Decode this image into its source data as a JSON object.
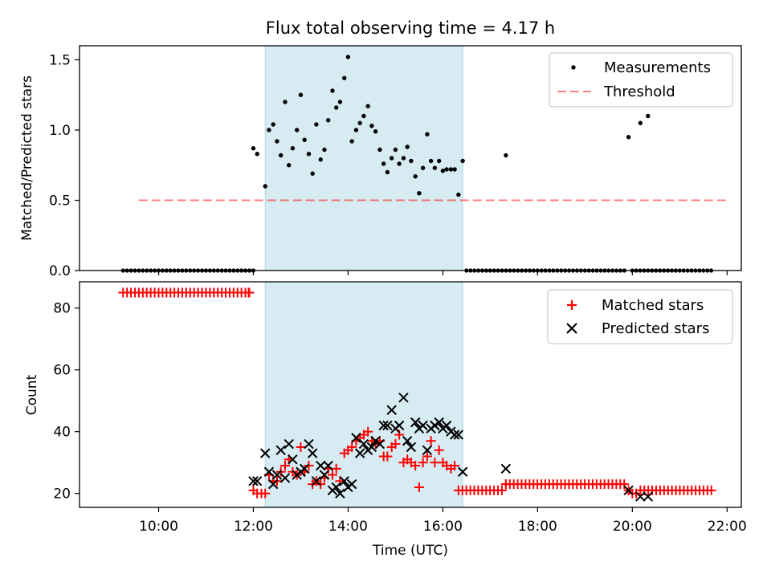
{
  "chart_data": {
    "type": "scatter",
    "title": "Flux total observing time = 4.17 h",
    "xlabel": "Time (UTC)",
    "x_unit": "hours UTC",
    "xlim": [
      8.33,
      22.3
    ],
    "x_ticks": [
      {
        "value": 10,
        "label": "10:00"
      },
      {
        "value": 12,
        "label": "12:00"
      },
      {
        "value": 14,
        "label": "14:00"
      },
      {
        "value": 16,
        "label": "16:00"
      },
      {
        "value": 18,
        "label": "18:00"
      },
      {
        "value": 20,
        "label": "20:00"
      },
      {
        "value": 22,
        "label": "22:00"
      }
    ],
    "shaded_interval": [
      12.25,
      16.42
    ],
    "panels": [
      {
        "ylabel": "Matched/Predicted stars",
        "ylim": [
          0,
          1.6
        ],
        "y_ticks": [
          {
            "value": 0.0,
            "label": "0.0"
          },
          {
            "value": 0.5,
            "label": "0.5"
          },
          {
            "value": 1.0,
            "label": "1.0"
          },
          {
            "value": 1.5,
            "label": "1.5"
          }
        ],
        "legend": [
          "Measurements",
          "Threshold"
        ],
        "threshold": {
          "value": 0.5,
          "x_range": [
            9.58,
            22.05
          ]
        },
        "zero_runs": [
          {
            "start": 9.25,
            "end": 12.0,
            "step": 0.0833
          },
          {
            "start": 16.5,
            "end": 19.9,
            "step": 0.0833
          },
          {
            "start": 20.0,
            "end": 21.7,
            "step": 0.0833
          }
        ],
        "measurements": [
          [
            12.0,
            0.87
          ],
          [
            12.08,
            0.83
          ],
          [
            12.25,
            0.6
          ],
          [
            12.33,
            1.0
          ],
          [
            12.42,
            1.04
          ],
          [
            12.5,
            0.92
          ],
          [
            12.58,
            0.82
          ],
          [
            12.67,
            1.2
          ],
          [
            12.75,
            0.75
          ],
          [
            12.83,
            0.87
          ],
          [
            12.92,
            1.0
          ],
          [
            13.0,
            1.25
          ],
          [
            13.08,
            0.93
          ],
          [
            13.17,
            0.83
          ],
          [
            13.25,
            0.69
          ],
          [
            13.33,
            1.04
          ],
          [
            13.42,
            0.79
          ],
          [
            13.5,
            0.86
          ],
          [
            13.58,
            1.07
          ],
          [
            13.67,
            1.28
          ],
          [
            13.75,
            1.16
          ],
          [
            13.83,
            1.2
          ],
          [
            13.92,
            1.37
          ],
          [
            14.0,
            1.52
          ],
          [
            14.08,
            0.92
          ],
          [
            14.17,
            1.0
          ],
          [
            14.25,
            1.05
          ],
          [
            14.33,
            1.1
          ],
          [
            14.42,
            1.17
          ],
          [
            14.5,
            1.03
          ],
          [
            14.58,
            0.99
          ],
          [
            14.67,
            0.86
          ],
          [
            14.75,
            0.76
          ],
          [
            14.83,
            0.7
          ],
          [
            14.92,
            0.8
          ],
          [
            15.0,
            0.86
          ],
          [
            15.08,
            0.76
          ],
          [
            15.17,
            0.8
          ],
          [
            15.25,
            0.88
          ],
          [
            15.33,
            0.78
          ],
          [
            15.42,
            0.67
          ],
          [
            15.5,
            0.55
          ],
          [
            15.58,
            0.73
          ],
          [
            15.67,
            0.97
          ],
          [
            15.75,
            0.78
          ],
          [
            15.83,
            0.73
          ],
          [
            15.92,
            0.78
          ],
          [
            16.0,
            0.71
          ],
          [
            16.08,
            0.72
          ],
          [
            16.17,
            0.72
          ],
          [
            16.25,
            0.72
          ],
          [
            16.33,
            0.54
          ],
          [
            16.42,
            0.78
          ],
          [
            17.33,
            0.82
          ],
          [
            19.92,
            0.95
          ],
          [
            20.17,
            1.05
          ],
          [
            20.33,
            1.1
          ]
        ]
      },
      {
        "ylabel": "Count",
        "ylim": [
          15.5,
          88.5
        ],
        "y_ticks": [
          {
            "value": 20,
            "label": "20"
          },
          {
            "value": 40,
            "label": "40"
          },
          {
            "value": 60,
            "label": "60"
          },
          {
            "value": 80,
            "label": "80"
          }
        ],
        "legend": [
          "Matched stars",
          "Predicted stars"
        ],
        "matched_runs": [
          {
            "start": 9.25,
            "end": 11.92,
            "step": 0.0833,
            "value": 85
          },
          {
            "start": 16.33,
            "end": 17.25,
            "step": 0.0833,
            "value": 21
          },
          {
            "start": 17.33,
            "end": 19.83,
            "step": 0.0833,
            "value": 23
          },
          {
            "start": 20.17,
            "end": 21.75,
            "step": 0.0833,
            "value": 21
          }
        ],
        "matched_stars": [
          [
            11.9,
            85
          ],
          [
            12.0,
            21
          ],
          [
            12.08,
            20
          ],
          [
            12.17,
            20
          ],
          [
            12.25,
            20
          ],
          [
            12.33,
            26
          ],
          [
            12.42,
            24
          ],
          [
            12.5,
            24
          ],
          [
            12.58,
            27
          ],
          [
            12.67,
            29
          ],
          [
            12.75,
            31
          ],
          [
            12.83,
            27
          ],
          [
            12.92,
            26
          ],
          [
            13.0,
            35
          ],
          [
            13.08,
            27
          ],
          [
            13.17,
            29
          ],
          [
            13.25,
            23
          ],
          [
            13.33,
            24
          ],
          [
            13.42,
            23
          ],
          [
            13.5,
            25
          ],
          [
            13.58,
            28
          ],
          [
            13.67,
            26
          ],
          [
            13.75,
            28
          ],
          [
            13.83,
            24
          ],
          [
            13.92,
            33
          ],
          [
            14.0,
            34
          ],
          [
            14.08,
            35
          ],
          [
            14.17,
            37
          ],
          [
            14.25,
            38
          ],
          [
            14.33,
            39
          ],
          [
            14.42,
            40
          ],
          [
            14.5,
            37
          ],
          [
            14.58,
            36
          ],
          [
            14.67,
            37
          ],
          [
            14.75,
            32
          ],
          [
            14.83,
            32
          ],
          [
            14.92,
            35
          ],
          [
            15.0,
            36
          ],
          [
            15.08,
            39
          ],
          [
            15.17,
            30
          ],
          [
            15.25,
            31
          ],
          [
            15.33,
            30
          ],
          [
            15.42,
            29
          ],
          [
            15.5,
            22
          ],
          [
            15.58,
            30
          ],
          [
            15.67,
            32
          ],
          [
            15.75,
            37
          ],
          [
            15.83,
            30
          ],
          [
            15.92,
            34
          ],
          [
            16.0,
            30
          ],
          [
            16.08,
            29
          ],
          [
            16.17,
            28
          ],
          [
            16.25,
            29
          ],
          [
            17.33,
            23
          ],
          [
            19.92,
            21
          ],
          [
            20.0,
            20
          ],
          [
            20.08,
            20
          ]
        ],
        "predicted_stars": [
          [
            12.0,
            24
          ],
          [
            12.08,
            24
          ],
          [
            12.25,
            33
          ],
          [
            12.33,
            27
          ],
          [
            12.42,
            23
          ],
          [
            12.5,
            26
          ],
          [
            12.58,
            34
          ],
          [
            12.67,
            25
          ],
          [
            12.75,
            36
          ],
          [
            12.83,
            31
          ],
          [
            12.92,
            26
          ],
          [
            13.0,
            27
          ],
          [
            13.08,
            28
          ],
          [
            13.17,
            36
          ],
          [
            13.25,
            33
          ],
          [
            13.33,
            24
          ],
          [
            13.42,
            29
          ],
          [
            13.5,
            26
          ],
          [
            13.58,
            29
          ],
          [
            13.67,
            21
          ],
          [
            13.75,
            22
          ],
          [
            13.83,
            20
          ],
          [
            13.92,
            24
          ],
          [
            14.0,
            22
          ],
          [
            14.08,
            23
          ],
          [
            14.17,
            38
          ],
          [
            14.25,
            33
          ],
          [
            14.33,
            36
          ],
          [
            14.42,
            34
          ],
          [
            14.5,
            35
          ],
          [
            14.58,
            37
          ],
          [
            14.67,
            36
          ],
          [
            14.75,
            42
          ],
          [
            14.83,
            42
          ],
          [
            14.92,
            47
          ],
          [
            15.0,
            41
          ],
          [
            15.08,
            42
          ],
          [
            15.17,
            51
          ],
          [
            15.25,
            37
          ],
          [
            15.33,
            35
          ],
          [
            15.42,
            43
          ],
          [
            15.5,
            41
          ],
          [
            15.58,
            42
          ],
          [
            15.67,
            34
          ],
          [
            15.75,
            41
          ],
          [
            15.83,
            42
          ],
          [
            15.92,
            43
          ],
          [
            16.0,
            41
          ],
          [
            16.08,
            42
          ],
          [
            16.17,
            40
          ],
          [
            16.25,
            39
          ],
          [
            16.33,
            39
          ],
          [
            16.42,
            27
          ],
          [
            17.33,
            28
          ],
          [
            19.92,
            21
          ],
          [
            20.17,
            19
          ],
          [
            20.33,
            19
          ]
        ]
      }
    ]
  }
}
